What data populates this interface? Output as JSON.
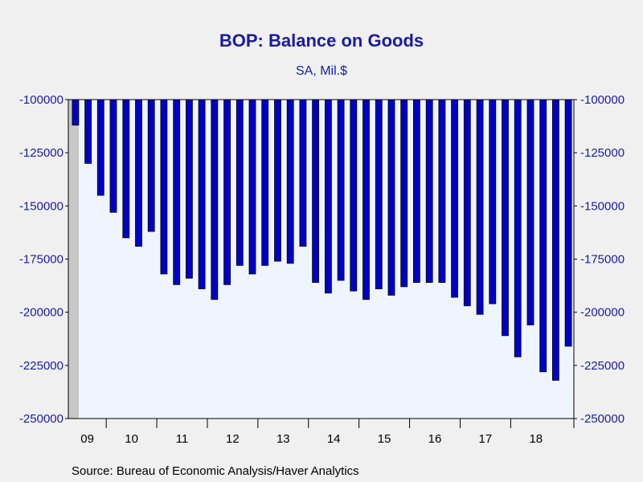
{
  "chart_data": {
    "type": "bar",
    "title": "BOP: Balance on Goods",
    "subtitle": "SA, Mil.$",
    "source": "Source:  Bureau of Economic Analysis/Haver Analytics",
    "ylim": [
      -250000,
      -100000
    ],
    "yticks": [
      -100000,
      -125000,
      -150000,
      -175000,
      -200000,
      -225000,
      -250000
    ],
    "ytick_labels": [
      "-100000",
      "-125000",
      "-150000",
      "-175000",
      "-200000",
      "-225000",
      "-250000"
    ],
    "grid": false,
    "bar_color": "#0000c8",
    "plot_bg": "#eef5ff",
    "shade_color": "#c8c8c8",
    "x_labels": [
      "09",
      "10",
      "11",
      "12",
      "13",
      "14",
      "15",
      "16",
      "17",
      "18"
    ],
    "categories": [
      "2009-Q2",
      "2009-Q3",
      "2009-Q4",
      "2010-Q1",
      "2010-Q2",
      "2010-Q3",
      "2010-Q4",
      "2011-Q1",
      "2011-Q2",
      "2011-Q3",
      "2011-Q4",
      "2012-Q1",
      "2012-Q2",
      "2012-Q3",
      "2012-Q4",
      "2013-Q1",
      "2013-Q2",
      "2013-Q3",
      "2013-Q4",
      "2014-Q1",
      "2014-Q2",
      "2014-Q3",
      "2014-Q4",
      "2015-Q1",
      "2015-Q2",
      "2015-Q3",
      "2015-Q4",
      "2016-Q1",
      "2016-Q2",
      "2016-Q3",
      "2016-Q4",
      "2017-Q1",
      "2017-Q2",
      "2017-Q3",
      "2017-Q4",
      "2018-Q1",
      "2018-Q2",
      "2018-Q3",
      "2018-Q4",
      "2019-Q1"
    ],
    "values": [
      -112000,
      -130000,
      -145000,
      -153000,
      -165000,
      -169000,
      -162000,
      -182000,
      -187000,
      -184000,
      -189000,
      -194000,
      -187000,
      -178000,
      -182000,
      -178000,
      -176000,
      -177000,
      -169000,
      -186000,
      -191000,
      -185000,
      -190000,
      -194000,
      -189000,
      -192000,
      -188000,
      -186000,
      -186000,
      -186000,
      -193000,
      -197000,
      -201000,
      -196000,
      -211000,
      -221000,
      -206000,
      -228000,
      -232000,
      -216000
    ]
  }
}
